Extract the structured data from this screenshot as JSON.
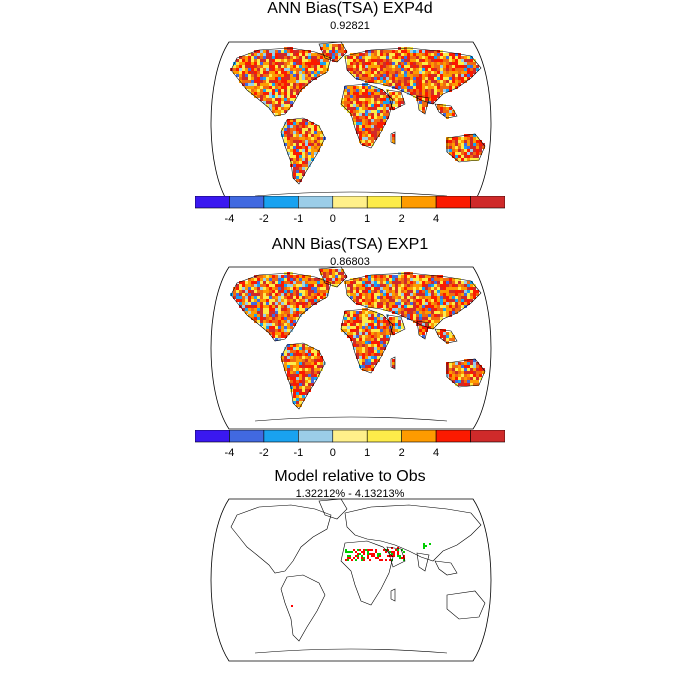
{
  "panels": [
    {
      "title": "ANN Bias(TSA) EXP4d",
      "subtitle": "0.92821"
    },
    {
      "title": "ANN Bias(TSA) EXP1",
      "subtitle": "0.86803"
    },
    {
      "title": "Model relative to Obs",
      "subtitle": "1.32212% - 4.13213%"
    }
  ],
  "colorbar": {
    "colors": [
      "#3a18f0",
      "#4169e0",
      "#19a2f0",
      "#9bcde8",
      "#fff08a",
      "#fdec4a",
      "#fe9b00",
      "#fb1a00",
      "#cf2a2a"
    ],
    "labels": [
      "-4",
      "-2",
      "-1",
      "0",
      "1",
      "2",
      "4"
    ]
  },
  "palette": {
    "coast": "#000000",
    "bias_warm": [
      "#fdec4a",
      "#fe9b00",
      "#f06a10",
      "#fb1a00",
      "#cf2a2a"
    ],
    "bias_cool": [
      "#9bcde8",
      "#19a2f0",
      "#4169e0"
    ],
    "relative": [
      "#ff0000",
      "#00cc00"
    ]
  }
}
